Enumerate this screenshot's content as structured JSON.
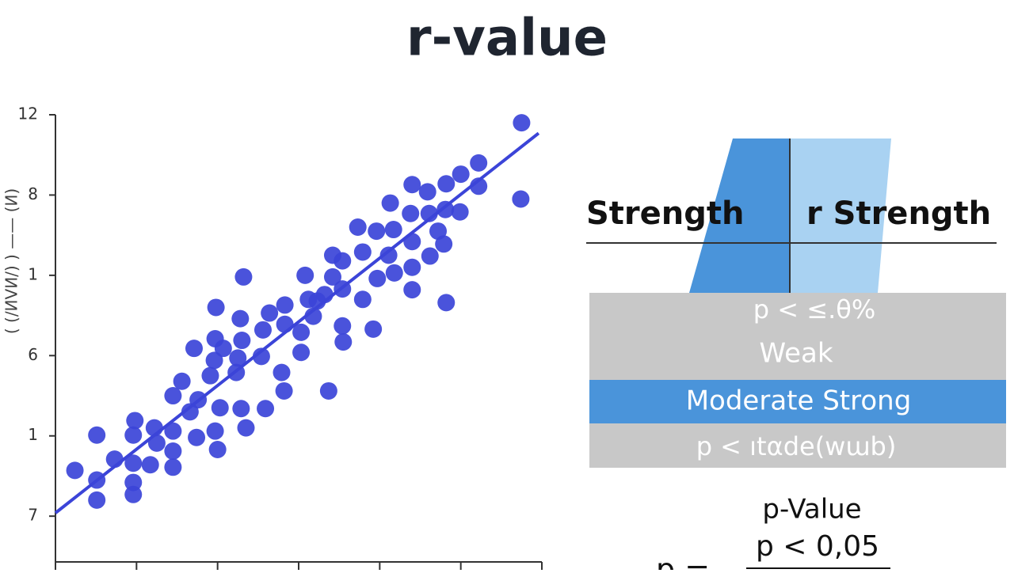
{
  "title": "r-value",
  "chart_data": {
    "type": "scatter",
    "y_label": "( (/ИVИ/) ) —— (И)",
    "color": "#3b44d8",
    "x": [
      5.75,
      5.74,
      5.22,
      5.0,
      5.22,
      4.82,
      4.59,
      4.4,
      4.13,
      4.38,
      4.61,
      4.81,
      4.99,
      4.72,
      4.79,
      4.17,
      3.73,
      3.96,
      4.4,
      4.62,
      4.11,
      3.79,
      3.54,
      3.42,
      3.08,
      2.32,
      4.18,
      3.97,
      4.4,
      4.4,
      4.82,
      3.79,
      3.54,
      3.32,
      3.12,
      2.83,
      1.98,
      2.28,
      2.64,
      2.83,
      3.03,
      2.56,
      2.3,
      1.97,
      1.71,
      2.07,
      2.25,
      2.54,
      2.79,
      3.03,
      3.54,
      3.92,
      3.55,
      3.37,
      2.82,
      2.23,
      1.91,
      1.56,
      1.45,
      1.76,
      2.03,
      2.29,
      2.59,
      2.35,
      1.97,
      1.74,
      1.45,
      1.22,
      0.98,
      0.96,
      1.25,
      1.45,
      2.0,
      0.73,
      0.96,
      1.17,
      1.45,
      0.51,
      0.24,
      0.51,
      0.96,
      0.96,
      0.51,
      3.23,
      3.42,
      3.18,
      1.96,
      1.66
    ],
    "values": [
      4.9,
      3.95,
      4.4,
      4.26,
      4.11,
      4.14,
      4.04,
      4.13,
      3.9,
      3.77,
      3.77,
      3.82,
      3.79,
      3.55,
      3.39,
      3.57,
      3.6,
      3.55,
      3.42,
      3.24,
      3.25,
      3.29,
      3.18,
      3.25,
      3.0,
      2.98,
      3.03,
      2.96,
      3.1,
      2.82,
      2.66,
      2.7,
      2.83,
      2.76,
      2.7,
      2.63,
      2.6,
      2.46,
      2.53,
      2.39,
      2.29,
      2.32,
      2.19,
      2.21,
      2.09,
      2.09,
      1.97,
      1.99,
      1.79,
      2.04,
      2.37,
      2.33,
      2.17,
      1.56,
      1.56,
      1.79,
      1.75,
      1.68,
      1.5,
      1.45,
      1.35,
      1.34,
      1.34,
      1.1,
      1.06,
      0.98,
      1.06,
      1.1,
      1.19,
      1.01,
      0.91,
      0.81,
      0.83,
      0.71,
      0.66,
      0.64,
      0.61,
      1.01,
      0.57,
      0.45,
      0.42,
      0.27,
      0.2,
      2.68,
      2.98,
      2.49,
      1.94,
      1.3
    ],
    "trendline": {
      "x": [
        0,
        5.96
      ],
      "values": [
        0.04,
        4.77
      ]
    },
    "xlim": [
      0,
      6
    ],
    "xticks": [
      0,
      1,
      2,
      3,
      4,
      5,
      6
    ],
    "ylim": [
      -0.57,
      5
    ],
    "yticks": [
      {
        "value": 0,
        "label": "7"
      },
      {
        "value": 1,
        "label": "1"
      },
      {
        "value": 2,
        "label": "6"
      },
      {
        "value": 3,
        "label": "1"
      },
      {
        "value": 4,
        "label": "8"
      },
      {
        "value": 5,
        "label": "12"
      }
    ]
  },
  "table": {
    "header": [
      "Strength",
      "r Strength"
    ],
    "rows": [
      "p < ≤.θ%",
      "Weak",
      "Moderate Strong",
      "p < ıtαde(wɯb)"
    ]
  },
  "formula": {
    "label": "p-Value",
    "lhs": "p =",
    "rhs": "p < 0,05"
  }
}
